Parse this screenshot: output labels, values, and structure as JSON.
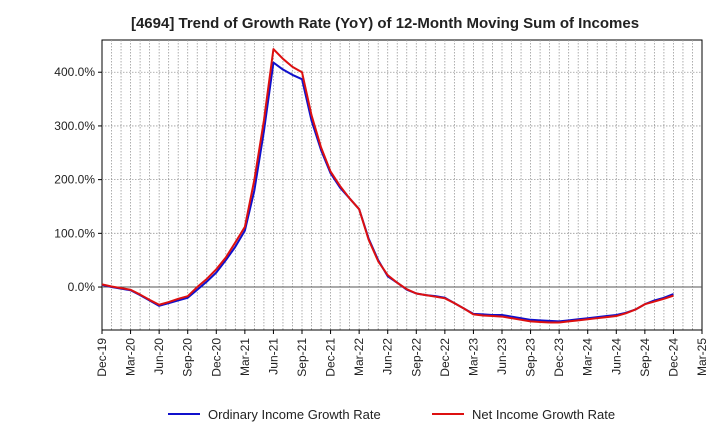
{
  "chart_data": {
    "type": "line",
    "title": "[4694]  Trend of Growth Rate (YoY) of 12-Month Moving Sum of Incomes",
    "xlabel": "",
    "ylabel": "",
    "ylim": [
      -80,
      460
    ],
    "yticks": [
      0,
      100,
      200,
      300,
      400
    ],
    "ytick_labels": [
      "0.0%",
      "100.0%",
      "200.0%",
      "300.0%",
      "400.0%"
    ],
    "xtick_labels": [
      "Dec-19",
      "Mar-20",
      "Jun-20",
      "Sep-20",
      "Dec-20",
      "Mar-21",
      "Jun-21",
      "Sep-21",
      "Dec-21",
      "Mar-22",
      "Jun-22",
      "Sep-22",
      "Dec-22",
      "Mar-23",
      "Jun-23",
      "Sep-23",
      "Dec-23",
      "Mar-24",
      "Jun-24",
      "Sep-24",
      "Dec-24",
      "Mar-25"
    ],
    "x": [
      "Dec-19",
      "Jan-20",
      "Feb-20",
      "Mar-20",
      "Apr-20",
      "May-20",
      "Jun-20",
      "Jul-20",
      "Aug-20",
      "Sep-20",
      "Oct-20",
      "Nov-20",
      "Dec-20",
      "Jan-21",
      "Feb-21",
      "Mar-21",
      "Apr-21",
      "May-21",
      "Jun-21",
      "Jul-21",
      "Aug-21",
      "Sep-21",
      "Oct-21",
      "Nov-21",
      "Dec-21",
      "Jan-22",
      "Feb-22",
      "Mar-22",
      "Apr-22",
      "May-22",
      "Jun-22",
      "Jul-22",
      "Aug-22",
      "Sep-22",
      "Oct-22",
      "Nov-22",
      "Dec-22",
      "Jan-23",
      "Feb-23",
      "Mar-23",
      "Apr-23",
      "May-23",
      "Jun-23",
      "Jul-23",
      "Aug-23",
      "Sep-23",
      "Oct-23",
      "Nov-23",
      "Dec-23",
      "Jan-24",
      "Feb-24",
      "Mar-24",
      "Apr-24",
      "May-24",
      "Jun-24",
      "Jul-24",
      "Aug-24",
      "Sep-24",
      "Oct-24",
      "Nov-24",
      "Dec-24"
    ],
    "grid": true,
    "legend_position": "bottom",
    "series": [
      {
        "name": "Ordinary Income Growth Rate",
        "color": "#1010cc",
        "values": [
          4,
          0,
          -3,
          -6,
          -15,
          -25,
          -35,
          -30,
          -25,
          -20,
          -5,
          10,
          27,
          50,
          75,
          105,
          180,
          290,
          418,
          405,
          395,
          387,
          310,
          255,
          212,
          185,
          165,
          145,
          90,
          50,
          20,
          8,
          -5,
          -12,
          -15,
          -17,
          -20,
          -30,
          -40,
          -50,
          -51,
          -52,
          -52,
          -55,
          -58,
          -61,
          -62,
          -63,
          -64,
          -62,
          -60,
          -58,
          -56,
          -54,
          -52,
          -48,
          -42,
          -32,
          -25,
          -20,
          -13
        ]
      },
      {
        "name": "Net Income Growth Rate",
        "color": "#dd1010",
        "values": [
          5,
          1,
          -2,
          -5,
          -14,
          -24,
          -33,
          -28,
          -22,
          -17,
          0,
          15,
          33,
          55,
          83,
          112,
          200,
          310,
          443,
          425,
          410,
          400,
          320,
          260,
          215,
          188,
          165,
          145,
          88,
          48,
          22,
          8,
          -4,
          -12,
          -15,
          -18,
          -21,
          -30,
          -40,
          -51,
          -53,
          -54,
          -55,
          -58,
          -61,
          -64,
          -65,
          -66,
          -66,
          -64,
          -62,
          -60,
          -58,
          -56,
          -54,
          -49,
          -42,
          -32,
          -27,
          -22,
          -16
        ]
      }
    ]
  }
}
